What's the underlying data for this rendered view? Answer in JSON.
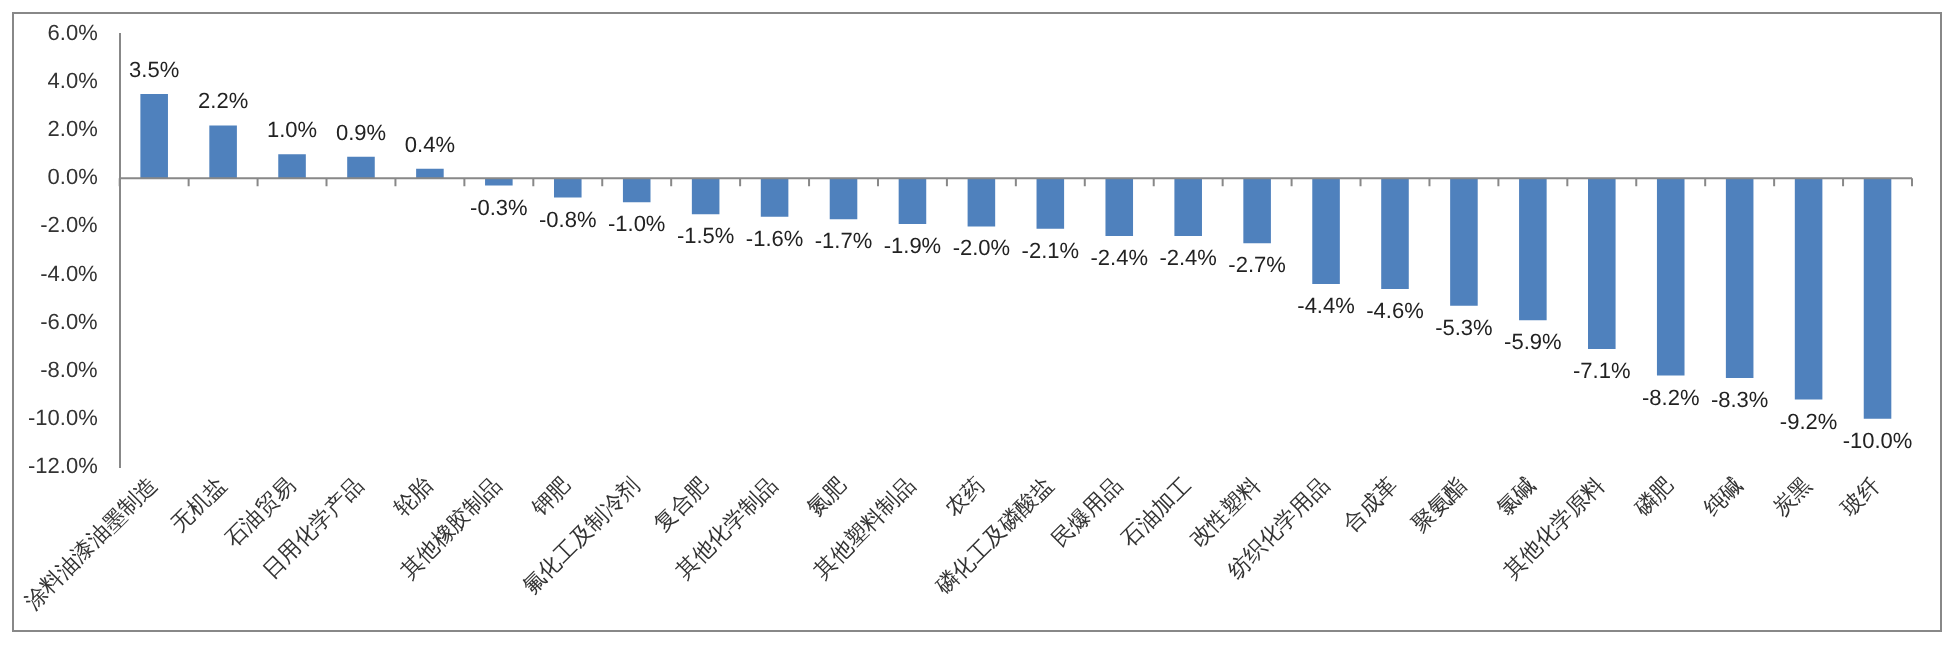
{
  "chart_data": {
    "type": "bar",
    "categories": [
      "涂料油漆油墨制造",
      "无机盐",
      "石油贸易",
      "日用化学产品",
      "轮胎",
      "其他橡胶制品",
      "钾肥",
      "氟化工及制冷剂",
      "复合肥",
      "其他化学制品",
      "氮肥",
      "其他塑料制品",
      "农药",
      "磷化工及磷酸盐",
      "民爆用品",
      "石油加工",
      "改性塑料",
      "纺织化学用品",
      "合成革",
      "聚氨酯",
      "氯碱",
      "其他化学原料",
      "磷肥",
      "纯碱",
      "炭黑",
      "玻纤"
    ],
    "values": [
      3.5,
      2.2,
      1.0,
      0.9,
      0.4,
      -0.3,
      -0.8,
      -1.0,
      -1.5,
      -1.6,
      -1.7,
      -1.9,
      -2.0,
      -2.1,
      -2.4,
      -2.4,
      -2.7,
      -4.4,
      -4.6,
      -5.3,
      -5.9,
      -7.1,
      -8.2,
      -8.3,
      -9.2,
      -10.0
    ],
    "value_labels": [
      "3.5%",
      "2.2%",
      "1.0%",
      "0.9%",
      "0.4%",
      "-0.3%",
      "-0.8%",
      "-1.0%",
      "-1.5%",
      "-1.6%",
      "-1.7%",
      "-1.9%",
      "-2.0%",
      "-2.1%",
      "-2.4%",
      "-2.4%",
      "-2.7%",
      "-4.4%",
      "-4.6%",
      "-5.3%",
      "-5.9%",
      "-7.1%",
      "-8.2%",
      "-8.3%",
      "-9.2%",
      "-10.0%"
    ],
    "color": "#4f81bd",
    "ylim": [
      -12,
      6
    ],
    "yticks": [
      {
        "value": 6,
        "label": "6.0%"
      },
      {
        "value": 4,
        "label": "4.0%"
      },
      {
        "value": 2,
        "label": "2.0%"
      },
      {
        "value": 0,
        "label": "0.0%"
      },
      {
        "value": -2,
        "label": "-2.0%"
      },
      {
        "value": -4,
        "label": "-4.0%"
      },
      {
        "value": -6,
        "label": "-6.0%"
      },
      {
        "value": -8,
        "label": "-8.0%"
      },
      {
        "value": -10,
        "label": "-10.0%"
      },
      {
        "value": -12,
        "label": "-12.0%"
      }
    ],
    "ref_lines": [
      {
        "axis": "y",
        "value": 0,
        "color": "#888888"
      }
    ],
    "grid": false,
    "legend": false
  }
}
